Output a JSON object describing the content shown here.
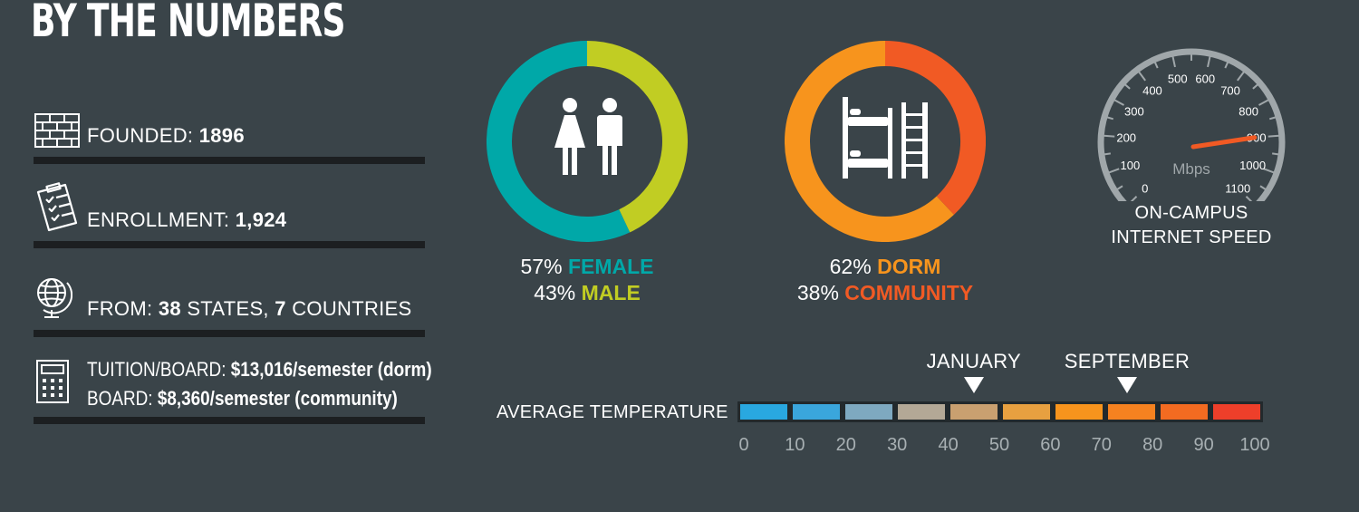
{
  "title": "BY THE NUMBERS",
  "facts": {
    "founded": {
      "label": "FOUNDED:",
      "value": "1896",
      "icon": "brick-wall-icon"
    },
    "enrollment": {
      "label": "ENROLLMENT:",
      "value": "1,924",
      "icon": "clipboard-checklist-icon"
    },
    "from": {
      "label": "FROM:",
      "states_count": "38",
      "states_word": "STATES,",
      "countries_count": "7",
      "countries_word": "COUNTRIES",
      "icon": "globe-icon"
    },
    "tuition": {
      "icon": "calculator-icon",
      "line1_label": "TUITION/BOARD:",
      "line1_value": "$13,016/semester (dorm)",
      "line2_label": "BOARD:",
      "line2_value": "$8,360/semester (community)"
    }
  },
  "gender": {
    "icon": "female-male-icon",
    "female_pct": "57%",
    "female_label": "FEMALE",
    "male_pct": "43%",
    "male_label": "MALE",
    "female_color": "#00a8a8",
    "male_color": "#c1cd23"
  },
  "housing": {
    "icon": "bunk-bed-icon",
    "dorm_pct": "62%",
    "dorm_label": "DORM",
    "community_pct": "38%",
    "community_label": "COMMUNITY",
    "dorm_color": "#f7941d",
    "community_color": "#f15a24"
  },
  "speed": {
    "unit": "Mbps",
    "ticks": [
      "0",
      "100",
      "200",
      "300",
      "400",
      "500",
      "600",
      "700",
      "800",
      "900",
      "1000",
      "1100"
    ],
    "value": 900,
    "max": 1100,
    "label_line1": "ON-CAMPUS",
    "label_line2": "INTERNET SPEED"
  },
  "temperature": {
    "title": "AVERAGE TEMPERATURE",
    "scale": [
      "0",
      "10",
      "20",
      "30",
      "40",
      "50",
      "60",
      "70",
      "80",
      "90",
      "100"
    ],
    "january_label": "JANUARY",
    "january_value": 45,
    "september_label": "SEPTEMBER",
    "september_value": 75,
    "segment_colors": [
      "#29a8e0",
      "#3aa6dc",
      "#7ea9c0",
      "#b3a896",
      "#c9a070",
      "#e7a040",
      "#f7941d",
      "#f58220",
      "#f36b21",
      "#ee3f2a"
    ]
  }
}
